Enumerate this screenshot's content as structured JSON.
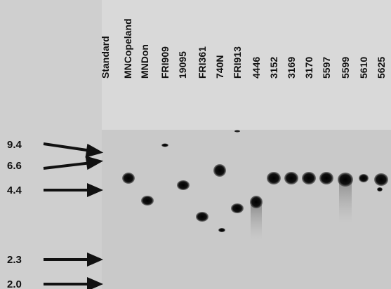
{
  "lanes": [
    "Standard",
    "MNCopeland",
    "MNDon",
    "FRI909",
    "19095",
    "FRI361",
    "740N",
    "FRI913",
    "4446",
    "3152",
    "3169",
    "3170",
    "5597",
    "5599",
    "5610",
    "5625"
  ],
  "markers": [
    "9.4",
    "6.6",
    "4.4",
    "2.3",
    "2.0"
  ]
}
